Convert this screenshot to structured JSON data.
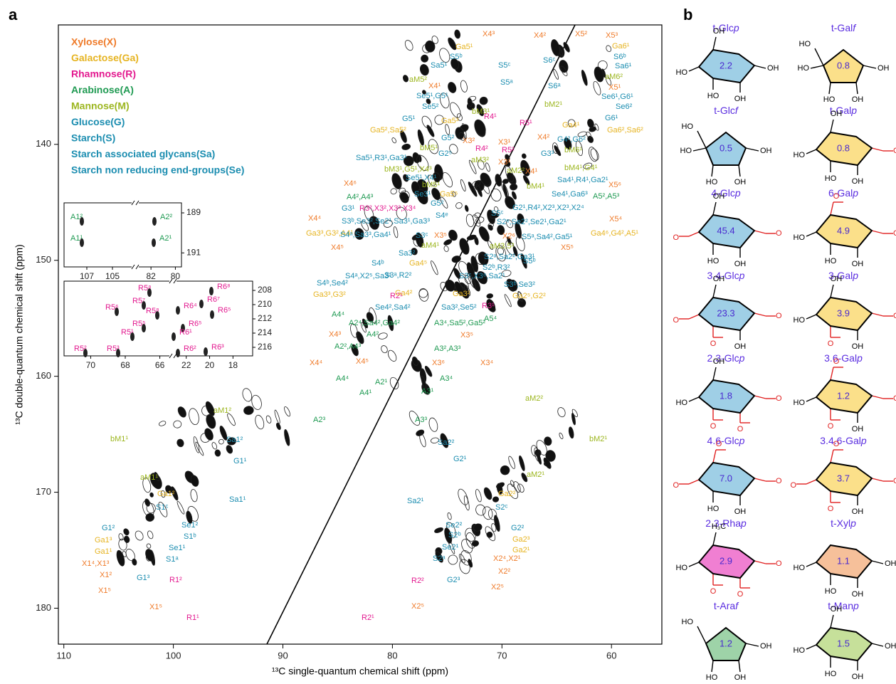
{
  "panel_a": {
    "label": "a",
    "x_axis_label": "¹³C single-quantum chemical shift (ppm)",
    "y_axis_label": "¹³C double-quantum chemical shift (ppm)",
    "xlim": [
      110.5,
      55.4
    ],
    "ylim": [
      129.7,
      183.1
    ],
    "xticks": [
      110,
      100,
      90,
      80,
      70,
      60
    ],
    "yticks": [
      140,
      150,
      160,
      170,
      180
    ],
    "legend": [
      {
        "name": "Xylose(X)",
        "color": "#ef7b2a"
      },
      {
        "name": "Galactose(Ga)",
        "color": "#e6b422"
      },
      {
        "name": "Rhamnose(R)",
        "color": "#e3198f"
      },
      {
        "name": "Arabinose(A)",
        "color": "#1f9a52"
      },
      {
        "name": "Mannose(M)",
        "color": "#9cb61f"
      },
      {
        "name": "Glucose(G)",
        "color": "#1b8db0"
      },
      {
        "name": "Starch(S)",
        "color": "#1b8db0"
      },
      {
        "name": "Starch associated glycans(Sa)",
        "color": "#1b8db0"
      },
      {
        "name": "Starch non reducing end-groups(Se)",
        "color": "#1b8db0"
      }
    ],
    "peak_labels": [
      "X4³",
      "X4²",
      "Ga5¹",
      "S5ᵇ",
      "Sa5¹",
      "S5ᶜ",
      "aM5²",
      "S5ᵃ",
      "X4¹",
      "Se5¹,G5¹",
      "Se5²",
      "G5¹",
      "bM3¹",
      "R4¹",
      "Ga5³",
      "Ga5²,Sa5²",
      "G5²",
      "G2⁵",
      "X3²",
      "R4²",
      "X3¹",
      "bM5¹",
      "Sa5¹,R3¹,Ga3¹",
      "aM3²",
      "bM3¹,G5¹,X4³",
      "Se5¹,X4¹",
      "bM5¹",
      "X4⁶",
      "A4²,A4³",
      "Ga5⁵",
      "Se3¹",
      "G3¹",
      "R3²,X3²,X3³,X3⁴",
      "G5²",
      "S4ᵉ",
      "X4⁴",
      "S3ᵇ,Se3²,Se2¹,Sa3¹,Ga3³",
      "Ga3³,G3²,A4¹",
      "S4ᵃ,Sa3³,Ga4¹",
      "S3ᶜ",
      "X3⁵",
      "aM4¹",
      "X4⁵",
      "Sa3²",
      "Ga4⁵",
      "S4ᵇ",
      "S3ᵃ,R2²",
      "S4ᵇ,Se4²",
      "S4ᵃ,X2⁵,Sa3¹",
      "Ga3³,G3²",
      "R2¹",
      "Ga4²",
      "Ga3²",
      "Sa3²,Se5²",
      "Se4²,Sa4²",
      "A4⁴",
      "A2⁴,Sa4²,Ga4²",
      "A2²,A4³",
      "A4²",
      "X4³",
      "X4⁴",
      "X4⁵",
      "A4⁴",
      "A2¹",
      "A4¹",
      "X5²",
      "X5³",
      "Ga6¹",
      "S6ᵇ",
      "S6ᶜ",
      "Sa6¹",
      "aM6²",
      "X5¹",
      "S6ᵃ",
      "Se6¹,G6¹",
      "bM2¹",
      "Se6²",
      "G6¹",
      "R5¹",
      "Ga4¹",
      "G4²,G6²",
      "Ga6²,Sa6²",
      "X4²",
      "G3³",
      "R5²",
      "X3¹",
      "aM2²",
      "bM6¹",
      "Sa4¹,R4¹,Ga2¹",
      "X4¹",
      "bM4¹,G4¹",
      "bM4¹",
      "X5⁶",
      "Se4¹,Ga6³",
      "A5²,A5³",
      "G2¹,R4²,X2³,X2³,X2⁴",
      "X5⁴",
      "S5ᶜ",
      "S2ᵉ,Se2²,Se2¹,Ga2¹",
      "S5ᵃ,Sa4²,Ga5¹",
      "Ga4⁶,G4²,A5¹",
      "X2⁶",
      "aM3,5²",
      "X5⁵",
      "S2ᵃ,Sa2²,Ga3¹",
      "S5ᵇ",
      "S2ᵇ,R3²",
      "S3ᶜ,X3⁶,Sa2¹",
      "S3ᵇ,Se3²",
      "Ga2⁵,G2²",
      "R3¹",
      "A5⁴",
      "A3⁴,Sa5²,Ga5²",
      "X3⁵",
      "A3²,A3³",
      "X3⁶",
      "X3⁴",
      "A3¹",
      "A3⁴",
      "aM1²",
      "A2³",
      "bM1¹",
      "Sa1²",
      "G1¹",
      "aM1¹",
      "Ga1²",
      "Sa1¹",
      "S1ᶜ",
      "Se1²",
      "S1ᵇ",
      "Se1¹",
      "G1²",
      "Ga1³",
      "Ga1¹",
      "X1⁴,X1³",
      "S1ᵃ",
      "X1²",
      "X1⁵",
      "G1³",
      "R1²",
      "X1⁵",
      "R1¹",
      "aM2²",
      "A3³",
      "bM2¹",
      "Sa2²",
      "G2¹",
      "aM2¹",
      "Ga2²",
      "Sa2¹",
      "S2ᶜ",
      "Se2²",
      "S2ᵇ",
      "G2²",
      "Ga2³",
      "Se2¹",
      "Ga2¹",
      "S2ᵃ",
      "X2⁴,X2¹",
      "X2²",
      "R2²",
      "G2³",
      "X2⁵",
      "X2⁵",
      "R2¹"
    ],
    "insets": [
      {
        "xticks": [
          107,
          105,
          82,
          80
        ],
        "yticks": [
          189,
          191
        ],
        "labels": [
          "A1²",
          "A1¹",
          "A2²",
          "A2¹"
        ]
      },
      {
        "xticks": [
          70,
          68,
          66,
          22,
          20,
          18
        ],
        "yticks": [
          208,
          210,
          212,
          214,
          216
        ],
        "labels": [
          "R5⁸",
          "R5⁷",
          "R5⁶",
          "R5⁸",
          "R5⁵",
          "R5¹",
          "R5²",
          "R5³",
          "R6⁸",
          "R6⁷",
          "R6⁴",
          "R6⁵",
          "R6⁵",
          "R6¹",
          "R6²",
          "R6³"
        ]
      }
    ]
  },
  "panel_b": {
    "label": "b",
    "structures": [
      {
        "name": "t-Glcp",
        "value": "2.2",
        "color": "#9fcfe6",
        "substituents": [
          "OH",
          "HO",
          "HO",
          "OH",
          "OH"
        ]
      },
      {
        "name": "t-Galf",
        "value": "0.8",
        "color": "#fbe08a",
        "substituents": [
          "HO",
          "HO",
          "HO",
          "OH",
          "OH"
        ]
      },
      {
        "name": "t-Glcf",
        "value": "0.5",
        "color": "#9fcfe6",
        "substituents": [
          "HO",
          "HO",
          "HO",
          "OH",
          "OH"
        ]
      },
      {
        "name": "t-Galp",
        "value": "0.8",
        "color": "#fbe08a",
        "substituents": [
          "OH",
          "HO",
          "HO",
          "OH",
          "O"
        ]
      },
      {
        "name": "4-Glcp",
        "value": "45.4",
        "color": "#9fcfe6",
        "substituents": [
          "OH",
          "O",
          "HO",
          "OH",
          "O"
        ]
      },
      {
        "name": "6-Galp",
        "value": "4.9",
        "color": "#fbe08a",
        "substituents": [
          "O",
          "HO",
          "HO",
          "OH",
          "O"
        ]
      },
      {
        "name": "3.4-Glcp",
        "value": "23.3",
        "color": "#9fcfe6",
        "substituents": [
          "OH",
          "O",
          "O",
          "OH",
          "O"
        ]
      },
      {
        "name": "3-Galp",
        "value": "3.9",
        "color": "#fbe08a",
        "substituents": [
          "OH",
          "HO",
          "O",
          "OH",
          "O"
        ]
      },
      {
        "name": "2.3-Glcp",
        "value": "1.8",
        "color": "#9fcfe6",
        "substituents": [
          "OH",
          "HO",
          "O",
          "O",
          "O"
        ]
      },
      {
        "name": "3.6-Galp",
        "value": "1.2",
        "color": "#fbe08a",
        "substituents": [
          "O",
          "HO",
          "O",
          "OH",
          "O"
        ]
      },
      {
        "name": "4.6-Glcp",
        "value": "7.0",
        "color": "#9fcfe6",
        "substituents": [
          "O",
          "O",
          "HO",
          "OH",
          "O"
        ]
      },
      {
        "name": "3.4.6-Galp",
        "value": "3.7",
        "color": "#fbe08a",
        "substituents": [
          "O",
          "O",
          "O",
          "OH",
          "O"
        ]
      },
      {
        "name": "2.3-Rhap",
        "value": "2.9",
        "color": "#f07fd2",
        "substituents": [
          "H₃C",
          "HO",
          "O",
          "O",
          "O"
        ]
      },
      {
        "name": "t-Xylp",
        "value": "1.1",
        "color": "#f6c09a",
        "substituents": [
          "HO",
          "HO",
          "OH",
          "OH"
        ]
      },
      {
        "name": "t-Araf",
        "value": "1.2",
        "color": "#9ed3a8",
        "substituents": [
          "HO",
          "HO",
          "OH",
          "OH"
        ]
      },
      {
        "name": "t-Manp",
        "value": "1.5",
        "color": "#c6e09a",
        "substituents": [
          "OH",
          "HO",
          "HO",
          "OH",
          "OH"
        ]
      }
    ]
  }
}
